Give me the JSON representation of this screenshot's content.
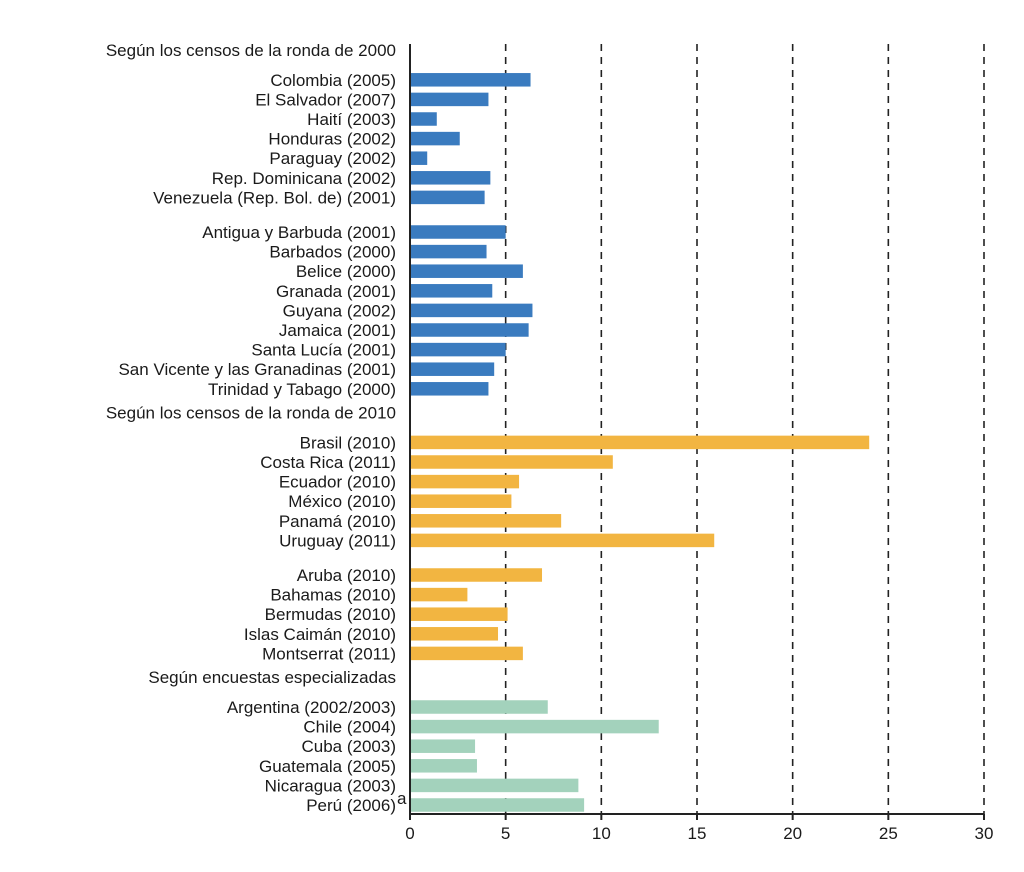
{
  "chart_data": {
    "type": "bar",
    "orientation": "horizontal",
    "xlim": [
      0,
      30
    ],
    "xticks": [
      "0",
      "5",
      "10",
      "15",
      "20",
      "25",
      "30"
    ],
    "grid": "vertical-dashed",
    "colors": {
      "ronda2000": "#3a7bbf",
      "ronda2010": "#f2b541",
      "encuestas": "#a3d2bc"
    },
    "groups": [
      {
        "header": "Según los censos de la ronda de 2000",
        "color_key": "ronda2000",
        "subgroups": [
          [
            {
              "label": "Colombia (2005)",
              "value": 6.3
            },
            {
              "label": "El Salvador (2007)",
              "value": 4.1
            },
            {
              "label": "Haití (2003)",
              "value": 1.4
            },
            {
              "label": "Honduras (2002)",
              "value": 2.6
            },
            {
              "label": "Paraguay (2002)",
              "value": 0.9
            },
            {
              "label": "Rep. Dominicana (2002)",
              "value": 4.2
            },
            {
              "label": "Venezuela (Rep. Bol. de) (2001)",
              "value": 3.9
            }
          ],
          [
            {
              "label": "Antigua y Barbuda (2001)",
              "value": 5.0
            },
            {
              "label": "Barbados (2000)",
              "value": 4.0
            },
            {
              "label": "Belice (2000)",
              "value": 5.9
            },
            {
              "label": "Granada (2001)",
              "value": 4.3
            },
            {
              "label": "Guyana (2002)",
              "value": 6.4
            },
            {
              "label": "Jamaica (2001)",
              "value": 6.2
            },
            {
              "label": "Santa Lucía (2001)",
              "value": 5.0
            },
            {
              "label": "San Vicente y las Granadinas (2001)",
              "value": 4.4
            },
            {
              "label": "Trinidad y Tabago (2000)",
              "value": 4.1
            }
          ]
        ]
      },
      {
        "header": "Según los censos de la ronda de 2010",
        "color_key": "ronda2010",
        "subgroups": [
          [
            {
              "label": "Brasil (2010)",
              "value": 24.0
            },
            {
              "label": "Costa Rica (2011)",
              "value": 10.6
            },
            {
              "label": "Ecuador (2010)",
              "value": 5.7
            },
            {
              "label": "México (2010)",
              "value": 5.3
            },
            {
              "label": "Panamá (2010)",
              "value": 7.9
            },
            {
              "label": "Uruguay (2011)",
              "value": 15.9
            }
          ],
          [
            {
              "label": "Aruba (2010)",
              "value": 6.9
            },
            {
              "label": "Bahamas (2010)",
              "value": 3.0
            },
            {
              "label": "Bermudas (2010)",
              "value": 5.1
            },
            {
              "label": "Islas Caimán (2010)",
              "value": 4.6
            },
            {
              "label": "Montserrat (2011)",
              "value": 5.9
            }
          ]
        ]
      },
      {
        "header": "Según encuestas especializadas",
        "color_key": "encuestas",
        "subgroups": [
          [
            {
              "label": "Argentina (2002/2003)",
              "value": 7.2
            },
            {
              "label": "Chile (2004)",
              "value": 13.0
            },
            {
              "label": "Cuba (2003)",
              "value": 3.4
            },
            {
              "label": "Guatemala (2005)",
              "value": 3.5
            },
            {
              "label": "Nicaragua (2003)",
              "value": 8.8
            },
            {
              "label": "Perú (2006)",
              "value": 9.1,
              "note": "a"
            }
          ]
        ]
      }
    ]
  }
}
